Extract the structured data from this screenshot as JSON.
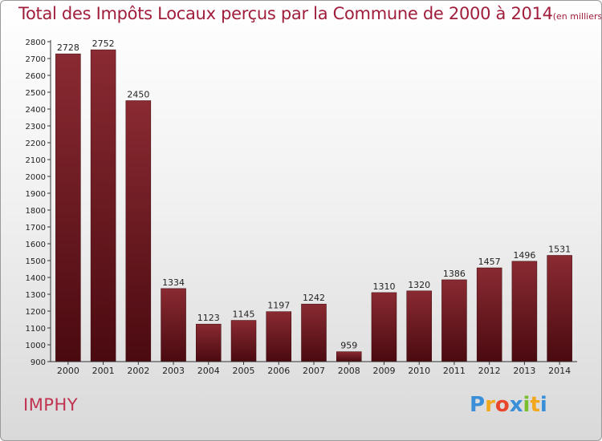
{
  "title": {
    "main": "Total des Impôts Locaux perçus par la Commune de 2000 à 2014",
    "unit": "(en milliers d'€)"
  },
  "commune": "IMPHY",
  "logo": {
    "text": "Proxiti",
    "letters": [
      {
        "char": "P",
        "color": "#3a8fd8"
      },
      {
        "char": "r",
        "color": "#f2a81d"
      },
      {
        "char": "o",
        "color": "#e8452c"
      },
      {
        "char": "x",
        "color": "#3a8fd8"
      },
      {
        "char": "i",
        "color": "#7cbf2e"
      },
      {
        "char": "t",
        "color": "#f2a81d"
      },
      {
        "char": "i",
        "color": "#3a8fd8"
      }
    ]
  },
  "chart_data": {
    "type": "bar",
    "title": "Total des Impôts Locaux perçus par la Commune de 2000 à 2014",
    "categories": [
      "2000",
      "2001",
      "2002",
      "2003",
      "2004",
      "2005",
      "2006",
      "2007",
      "2008",
      "2009",
      "2010",
      "2011",
      "2012",
      "2013",
      "2014"
    ],
    "values": [
      2728,
      2752,
      2450,
      1334,
      1123,
      1145,
      1197,
      1242,
      959,
      1310,
      1320,
      1386,
      1457,
      1496,
      1531
    ],
    "ylim": [
      900,
      2800
    ],
    "yticks": [
      900,
      1000,
      1100,
      1200,
      1300,
      1400,
      1500,
      1600,
      1700,
      1800,
      1900,
      2000,
      2100,
      2200,
      2300,
      2400,
      2500,
      2600,
      2700,
      2800
    ],
    "xlabel": "",
    "ylabel": "",
    "grid": false,
    "bar_color_top": "#8a2a32",
    "bar_color_bottom": "#4a0a10"
  }
}
